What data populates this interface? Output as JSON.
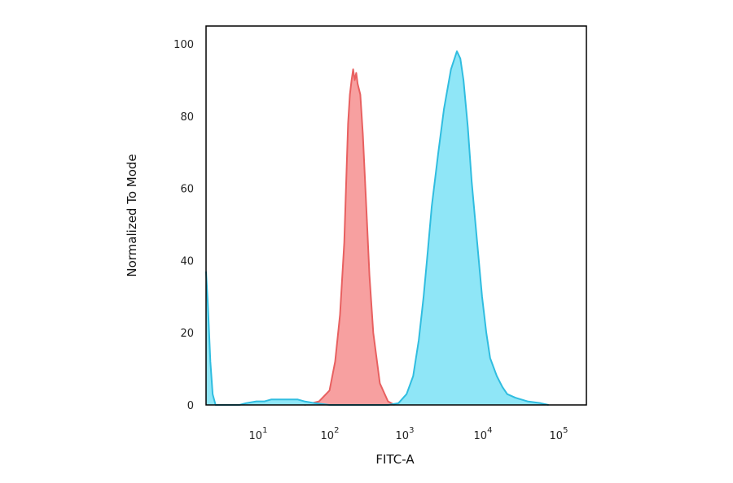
{
  "chart_data": {
    "type": "area",
    "title": "",
    "xlabel": "FITC-A",
    "ylabel": "Normalized To Mode",
    "x_scale": "log",
    "xlim": [
      2,
      100000
    ],
    "ylim": [
      0,
      105
    ],
    "grid": false,
    "legend": "none",
    "x_ticks": [
      {
        "value": 10,
        "base": "10",
        "exp": "1"
      },
      {
        "value": 100,
        "base": "10",
        "exp": "2"
      },
      {
        "value": 1000,
        "base": "10",
        "exp": "3"
      },
      {
        "value": 10000,
        "base": "10",
        "exp": "4"
      },
      {
        "value": 100000,
        "base": "10",
        "exp": "5"
      }
    ],
    "y_ticks": [
      {
        "value": 0,
        "label": "0"
      },
      {
        "value": 20,
        "label": "20"
      },
      {
        "value": 40,
        "label": "40"
      },
      {
        "value": 60,
        "label": "60"
      },
      {
        "value": 80,
        "label": "80"
      },
      {
        "value": 100,
        "label": "100"
      }
    ],
    "series": [
      {
        "color": "#e86060",
        "fill": "#f7a0a0",
        "x": [
          30,
          45,
          60,
          70,
          80,
          90,
          95,
          100,
          105,
          110,
          115,
          120,
          125,
          130,
          140,
          150,
          165,
          180,
          200,
          240,
          300,
          360
        ],
        "y": [
          0,
          1,
          4,
          12,
          25,
          45,
          62,
          78,
          86,
          90,
          93,
          90,
          92,
          89,
          86,
          75,
          55,
          36,
          20,
          6,
          1,
          0
        ]
      },
      {
        "color": "#30bde0",
        "fill": "#8fe6f7",
        "x": [
          2,
          2.1,
          2.25,
          2.4,
          2.6,
          3,
          4,
          5,
          6,
          8,
          10,
          12,
          15,
          20,
          25,
          30,
          40,
          60,
          100,
          200,
          300,
          400,
          500,
          600,
          700,
          800,
          900,
          1000,
          1200,
          1400,
          1700,
          2000,
          2200,
          2400,
          2700,
          3000,
          3500,
          4000,
          4500,
          5000,
          6000,
          7000,
          8000,
          10000,
          14000,
          20000,
          25000
        ],
        "y": [
          37,
          28,
          12,
          3,
          0,
          0,
          0,
          0,
          0.5,
          1,
          1,
          1.5,
          1.5,
          1.5,
          1.5,
          1,
          0.5,
          0,
          0,
          0,
          0,
          0.5,
          3,
          8,
          18,
          30,
          43,
          55,
          70,
          82,
          93,
          98,
          96,
          90,
          77,
          62,
          45,
          30,
          20,
          13,
          8,
          5,
          3,
          2,
          1,
          0.5,
          0
        ]
      }
    ]
  }
}
